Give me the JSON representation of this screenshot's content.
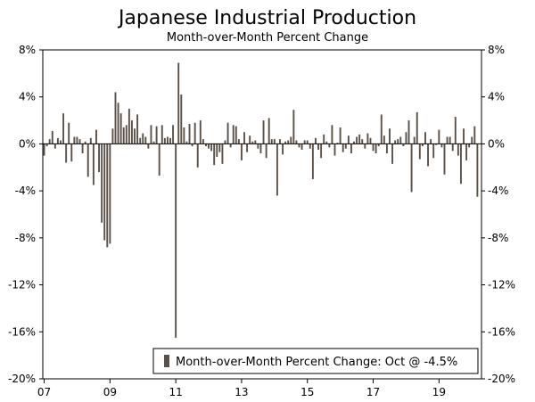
{
  "chart_data": {
    "type": "bar",
    "title": "Japanese Industrial Production",
    "subtitle": "Month-over-Month Percent Change",
    "xlabel": "",
    "ylabel": "",
    "ylim": [
      -20,
      8
    ],
    "yticks": [
      8,
      4,
      0,
      -4,
      -8,
      -12,
      -16,
      -20
    ],
    "ytick_labels": [
      "8%",
      "4%",
      "0%",
      "-4%",
      "-8%",
      "-12%",
      "-16%",
      "-20%"
    ],
    "xtick_labels": [
      "07",
      "09",
      "11",
      "13",
      "15",
      "17",
      "19"
    ],
    "xtick_years": [
      2007,
      2009,
      2011,
      2013,
      2015,
      2017,
      2019
    ],
    "x_start_year": 2007,
    "start_month": 1,
    "legend": {
      "label": "Month-over-Month Percent Change: Oct @ -4.5%",
      "position": "bottom-right"
    },
    "series": [
      {
        "name": "Month-over-Month Percent Change",
        "color": "#5b5148",
        "values": [
          -1.0,
          -0.2,
          0.4,
          1.1,
          -0.4,
          0.5,
          0.3,
          2.6,
          -1.6,
          1.8,
          -1.5,
          0.6,
          0.6,
          0.4,
          -0.8,
          0.2,
          -2.8,
          0.5,
          -3.5,
          1.2,
          -2.4,
          -6.7,
          -8.2,
          -8.8,
          -8.5,
          1.3,
          4.4,
          3.5,
          2.6,
          1.4,
          1.6,
          3.0,
          2.0,
          1.3,
          2.5,
          0.5,
          0.9,
          0.6,
          -0.4,
          1.6,
          0.2,
          1.5,
          -2.7,
          1.6,
          0.5,
          0.6,
          0.5,
          1.6,
          -16.5,
          6.9,
          4.2,
          1.4,
          0.2,
          1.7,
          -0.2,
          1.8,
          -2.0,
          2.0,
          0.4,
          -0.2,
          -0.4,
          -0.6,
          -1.8,
          -1.1,
          -0.7,
          -1.7,
          0.3,
          1.8,
          -0.3,
          1.6,
          1.5,
          0.4,
          -1.4,
          1.0,
          -0.7,
          0.7,
          0.2,
          0.3,
          -0.4,
          -0.8,
          2.0,
          -1.2,
          2.2,
          0.4,
          0.4,
          -4.4,
          0.4,
          -0.9,
          0.2,
          0.3,
          0.6,
          2.9,
          0.3,
          -0.3,
          -0.5,
          0.3,
          0.3,
          -0.4,
          -3.0,
          0.5,
          -0.5,
          -1.2,
          0.8,
          0.2,
          -0.3,
          1.6,
          -1.0,
          0.1,
          1.4,
          -0.7,
          -0.4,
          0.7,
          -0.8,
          0.2,
          0.6,
          0.8,
          0.4,
          -0.4,
          0.9,
          0.5,
          -0.6,
          -0.8,
          -0.2,
          2.5,
          0.7,
          -0.8,
          1.3,
          -1.7,
          0.3,
          0.4,
          0.6,
          -0.2,
          1.0,
          2.0,
          -4.1,
          0.6,
          2.7,
          -1.3,
          -0.2,
          1.0,
          -1.9,
          0.4,
          -1.2,
          -0.1,
          1.2,
          -0.3,
          -2.6,
          0.6,
          0.6,
          -0.6,
          2.3,
          -1.0,
          -3.4,
          1.3,
          -1.4,
          -0.3,
          0.6,
          1.5,
          -4.5
        ]
      }
    ]
  }
}
